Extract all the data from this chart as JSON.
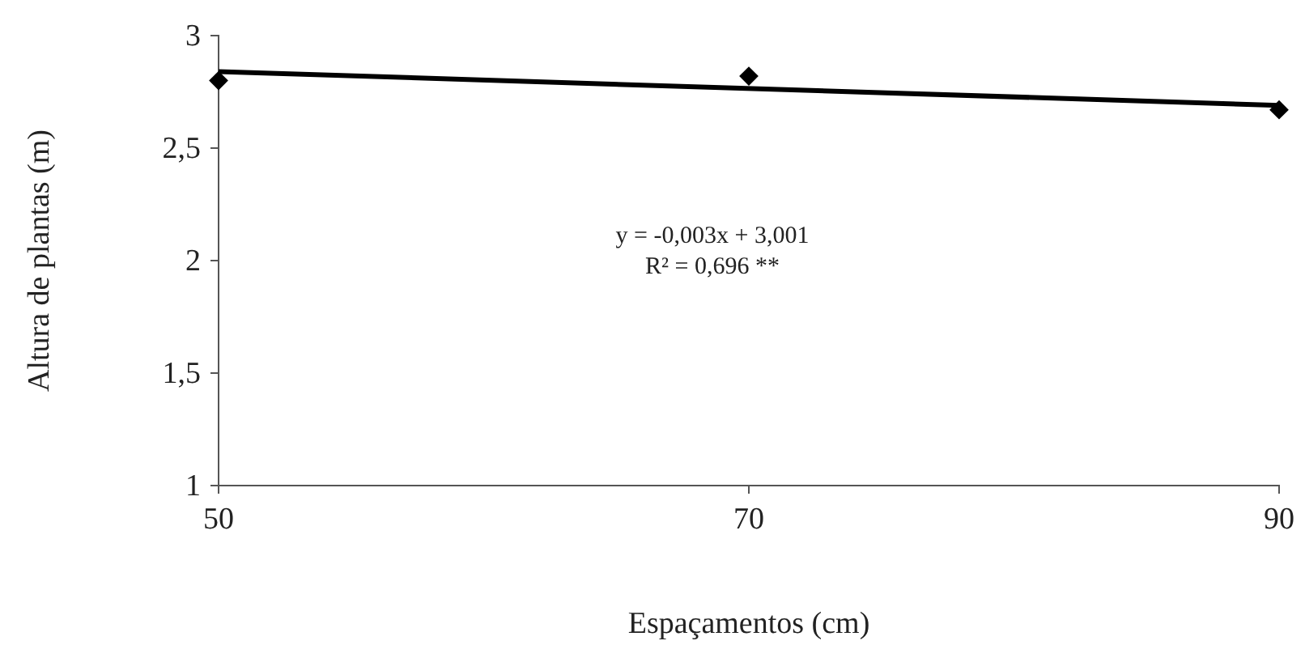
{
  "chart_data": {
    "type": "scatter",
    "xlabel": "Espaçamentos (cm)",
    "ylabel": "Altura de plantas (m)",
    "x": [
      50,
      70,
      90
    ],
    "xlim": [
      50,
      90
    ],
    "xticks": [
      50,
      70,
      90
    ],
    "ylim": [
      1,
      3
    ],
    "yticks": [
      1,
      {
        "value": 1.5,
        "label": "1,5"
      },
      2,
      {
        "value": 2.5,
        "label": "2,5"
      },
      3
    ],
    "grid": false,
    "series": [
      {
        "color": "#000000",
        "marker": "diamond",
        "values": [
          2.8,
          2.82,
          2.67
        ]
      },
      {
        "type": "line",
        "color": "#000000",
        "x": [
          50,
          90
        ],
        "values": [
          2.84,
          2.69
        ]
      }
    ],
    "annotations": [
      "y = -0,003x + 3,001",
      "R² = 0,696 **"
    ]
  }
}
